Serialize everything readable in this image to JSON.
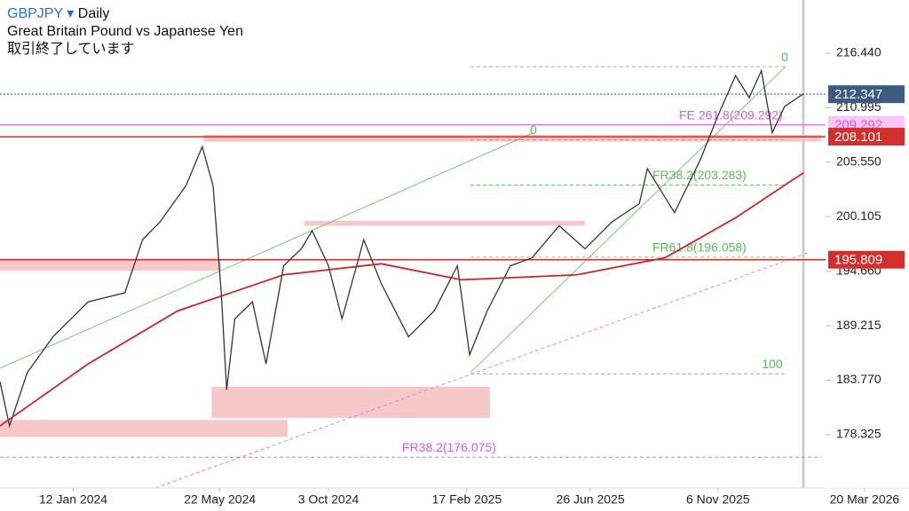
{
  "header": {
    "symbol": "GBPJPY",
    "interval": "Daily",
    "name": "Great Britain Pound vs Japanese Yen",
    "status": "取引終了しています"
  },
  "chart_data": {
    "type": "line",
    "xlim": [
      0,
      605
    ],
    "ylim": [
      173.0,
      221.76
    ],
    "xticks": [
      {
        "value": 54,
        "label": "12 Jan 2024"
      },
      {
        "value": 162,
        "label": "22 May 2024"
      },
      {
        "value": 242,
        "label": "3 Oct 2024"
      },
      {
        "value": 344,
        "label": "17 Feb 2025"
      },
      {
        "value": 435,
        "label": "26 Jun 2025"
      },
      {
        "value": 529,
        "label": "6 Nov 2025"
      },
      {
        "value": 637,
        "label": "20 Mar 2026"
      }
    ],
    "yticks": [
      {
        "value": 216.44,
        "label": "216.440"
      },
      210.995,
      {
        "value": 205.55,
        "label": "205.550"
      },
      200.105,
      {
        "value": 194.66,
        "label": "194.660"
      },
      189.215,
      {
        "value": 183.77,
        "label": "183.770"
      },
      178.325
    ],
    "series": [
      {
        "name": "GBPJPY",
        "color": "#333333",
        "x": [
          0,
          7,
          20,
          39,
          65,
          92,
          105,
          118,
          137,
          149,
          157,
          163,
          167,
          173,
          186,
          196,
          209,
          222,
          230,
          242,
          252,
          268,
          281,
          301,
          320,
          337,
          346,
          359,
          376,
          392,
          412,
          431,
          451,
          471,
          477,
          497,
          516,
          529,
          542,
          552,
          561,
          569,
          578,
          592
        ],
        "values": [
          183.6,
          179.2,
          184.5,
          188.1,
          191.6,
          192.5,
          197.8,
          199.6,
          203.2,
          207.1,
          203.2,
          192.5,
          182.8,
          189.9,
          191.6,
          185.4,
          195.2,
          196.9,
          198.7,
          195.2,
          189.9,
          197.8,
          193.4,
          188.1,
          190.7,
          195.2,
          186.3,
          190.7,
          195.2,
          196.0,
          199.2,
          196.9,
          199.6,
          201.4,
          204.9,
          200.5,
          205.8,
          210.2,
          214.2,
          212.0,
          214.7,
          208.5,
          211.1,
          212.4
        ]
      },
      {
        "name": "MA",
        "color": "#c62828",
        "x": [
          0,
          65,
          131,
          170,
          209,
          281,
          340,
          425,
          490,
          542,
          592
        ],
        "values": [
          179.2,
          185.4,
          190.7,
          192.5,
          194.3,
          195.4,
          193.8,
          194.3,
          196.0,
          200.0,
          204.5
        ]
      }
    ],
    "zones": [
      {
        "x": [
          0,
          212
        ],
        "y": [
          178.1,
          179.8
        ]
      },
      {
        "x": [
          156,
          361
        ],
        "y": [
          180.0,
          183.1
        ]
      },
      {
        "x": [
          0,
          163
        ],
        "y": [
          194.7,
          195.9
        ]
      },
      {
        "x": [
          150,
          605
        ],
        "y": [
          207.6,
          208.3
        ]
      },
      {
        "x": [
          224,
          431
        ],
        "y": [
          199.2,
          199.7
        ]
      }
    ],
    "price_levels": [
      {
        "value": 212.347,
        "color": "#3d5a80"
      },
      {
        "value": 209.292,
        "color": "#e27ee2"
      },
      {
        "value": 208.101,
        "color": "#d32f2f"
      },
      {
        "value": 195.809,
        "color": "#d32f2f"
      }
    ],
    "fib_levels": [
      {
        "label": "0",
        "value": 215.1
      },
      {
        "label": "0",
        "value": 207.8
      },
      {
        "label": "FE 261.8(209.292)",
        "value": 209.292
      },
      {
        "label": "FR38.2(203.283)",
        "value": 203.283
      },
      {
        "label": "FR61.8(196.058)",
        "value": 196.058
      },
      {
        "label": "100",
        "value": 184.4
      },
      {
        "label": "FR38.2(176.075)",
        "value": 176.075
      }
    ]
  }
}
